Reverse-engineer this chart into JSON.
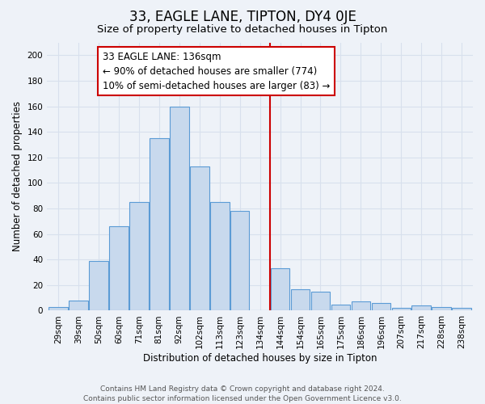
{
  "title": "33, EAGLE LANE, TIPTON, DY4 0JE",
  "subtitle": "Size of property relative to detached houses in Tipton",
  "xlabel": "Distribution of detached houses by size in Tipton",
  "ylabel": "Number of detached properties",
  "footer_line1": "Contains HM Land Registry data © Crown copyright and database right 2024.",
  "footer_line2": "Contains public sector information licensed under the Open Government Licence v3.0.",
  "bar_labels": [
    "29sqm",
    "39sqm",
    "50sqm",
    "60sqm",
    "71sqm",
    "81sqm",
    "92sqm",
    "102sqm",
    "113sqm",
    "123sqm",
    "134sqm",
    "144sqm",
    "154sqm",
    "165sqm",
    "175sqm",
    "186sqm",
    "196sqm",
    "207sqm",
    "217sqm",
    "228sqm",
    "238sqm"
  ],
  "bar_values": [
    3,
    8,
    39,
    66,
    85,
    135,
    160,
    113,
    85,
    78,
    0,
    33,
    17,
    15,
    5,
    7,
    6,
    2,
    4,
    3,
    2
  ],
  "bar_color": "#c8d9ed",
  "bar_edge_color": "#5b9bd5",
  "ylim": [
    0,
    210
  ],
  "yticks": [
    0,
    20,
    40,
    60,
    80,
    100,
    120,
    140,
    160,
    180,
    200
  ],
  "vline_x": 10.5,
  "vline_color": "#cc0000",
  "annotation_text": "33 EAGLE LANE: 136sqm\n← 90% of detached houses are smaller (774)\n10% of semi-detached houses are larger (83) →",
  "annotation_box_color": "#ffffff",
  "annotation_box_edge": "#cc0000",
  "background_color": "#eef2f8",
  "grid_color": "#d8e0ed",
  "title_fontsize": 12,
  "subtitle_fontsize": 9.5,
  "axis_label_fontsize": 8.5,
  "tick_fontsize": 7.5,
  "annotation_fontsize": 8.5,
  "footer_fontsize": 6.5
}
